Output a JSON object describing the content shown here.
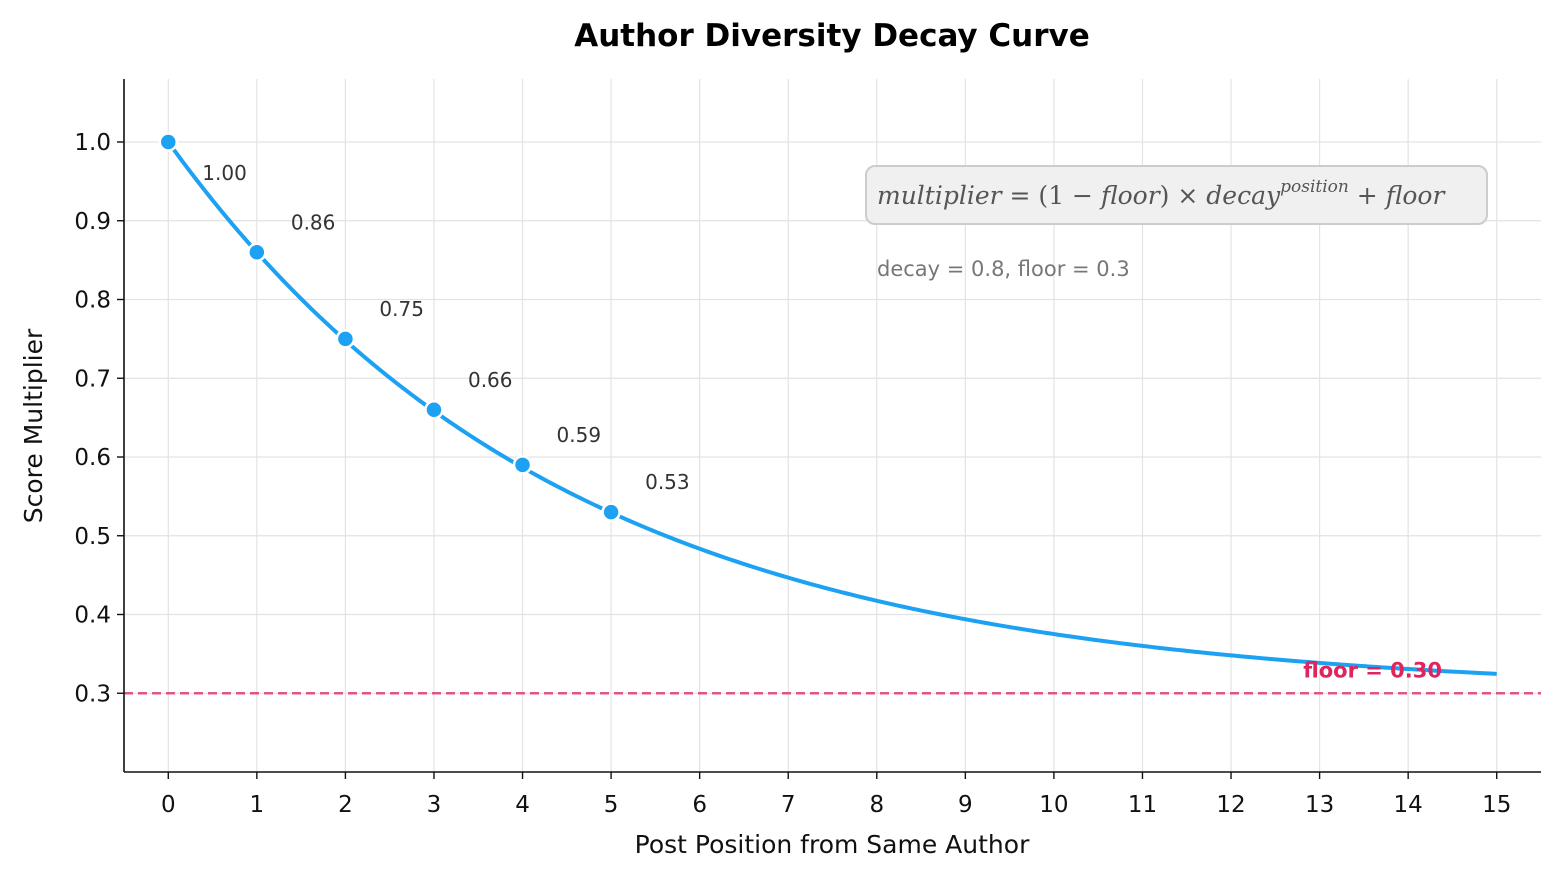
{
  "chart_data": {
    "type": "line",
    "title": "Author Diversity Decay Curve",
    "xlabel": "Post Position from Same Author",
    "ylabel": "Score Multiplier",
    "xlim": [
      -0.5,
      15.5
    ],
    "ylim": [
      0.2,
      1.08
    ],
    "x_ticks": [
      "0",
      "1",
      "2",
      "3",
      "4",
      "5",
      "6",
      "7",
      "8",
      "9",
      "10",
      "11",
      "12",
      "13",
      "14",
      "15"
    ],
    "y_ticks": [
      "0.3",
      "0.4",
      "0.5",
      "0.6",
      "0.7",
      "0.8",
      "0.9",
      "1.0"
    ],
    "grid": true,
    "curve": {
      "x_range": [
        0,
        15
      ],
      "decay": 0.8,
      "floor": 0.3,
      "color": "#1DA1F2"
    },
    "points": [
      {
        "x": 0,
        "y": 1.0,
        "label": "1.00"
      },
      {
        "x": 1,
        "y": 0.86,
        "label": "0.86"
      },
      {
        "x": 2,
        "y": 0.75,
        "label": "0.75"
      },
      {
        "x": 3,
        "y": 0.66,
        "label": "0.66"
      },
      {
        "x": 4,
        "y": 0.59,
        "label": "0.59"
      },
      {
        "x": 5,
        "y": 0.53,
        "label": "0.53"
      }
    ],
    "floor_line": {
      "y": 0.3,
      "label": "floor = 0.30",
      "color": "#E0245E"
    },
    "formula": {
      "lhs": "multiplier",
      "eq": " = (1 − ",
      "floor1": "floor",
      "times": ") × ",
      "decay": "decay",
      "sup": "position",
      "plus": " + ",
      "floor2": "floor"
    },
    "params": "decay = 0.8,  floor = 0.3"
  }
}
